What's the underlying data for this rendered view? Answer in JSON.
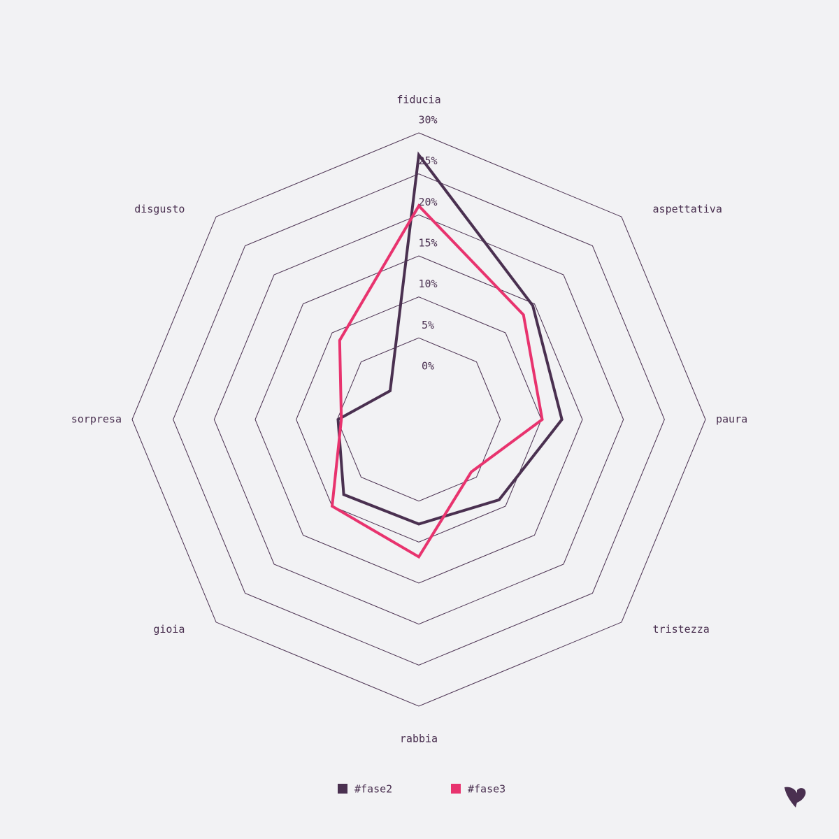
{
  "chart_data": {
    "type": "radar",
    "categories": [
      "fiducia",
      "aspettativa",
      "paura",
      "tristezza",
      "rabbia",
      "gioia",
      "sorpresa",
      "disgusto"
    ],
    "series": [
      {
        "name": "#fase2",
        "color": "#4a3050",
        "values": [
          27.3,
          14.7,
          12.5,
          8.9,
          7.8,
          8.0,
          4.9,
          0
        ]
      },
      {
        "name": "#fase3",
        "color": "#e8336e",
        "values": [
          21.1,
          13.1,
          10.1,
          4.1,
          11.8,
          10.0,
          4.5,
          8.7
        ]
      }
    ],
    "rlim": [
      0,
      30
    ],
    "rticks": [
      {
        "value": 0,
        "label": "0%"
      },
      {
        "value": 5,
        "label": "5%"
      },
      {
        "value": 10,
        "label": "10%"
      },
      {
        "value": 15,
        "label": "15%"
      },
      {
        "value": 20,
        "label": "20%"
      },
      {
        "value": 25,
        "label": "25%"
      },
      {
        "value": 30,
        "label": "30%"
      }
    ],
    "grid": true,
    "legend": "bottom"
  }
}
